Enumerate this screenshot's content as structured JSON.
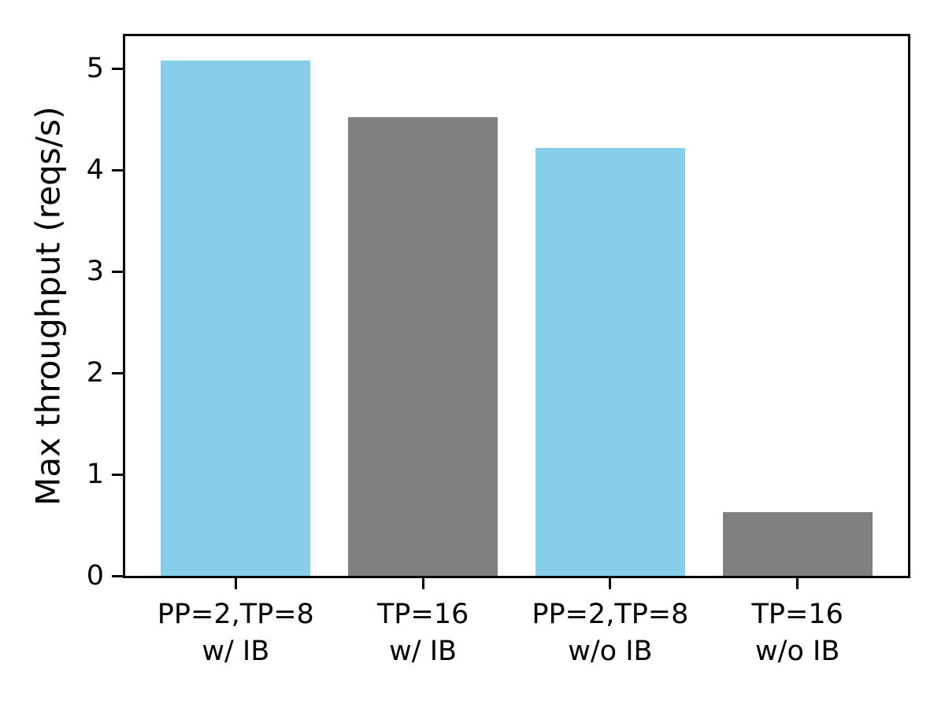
{
  "chart_data": {
    "type": "bar",
    "title": "",
    "xlabel": "",
    "ylabel": "Max throughput (reqs/s)",
    "categories": [
      {
        "line1": "PP=2,TP=8",
        "line2": "w/ IB"
      },
      {
        "line1": "TP=16",
        "line2": "w/ IB"
      },
      {
        "line1": "PP=2,TP=8",
        "line2": "w/o IB"
      },
      {
        "line1": "TP=16",
        "line2": "w/o IB"
      }
    ],
    "values": [
      5.08,
      4.52,
      4.22,
      0.63
    ],
    "bar_colors": [
      "#87CEEB",
      "#808080",
      "#87CEEB",
      "#808080"
    ],
    "y_ticks": [
      0,
      1,
      2,
      3,
      4,
      5
    ],
    "ylim": [
      0,
      5.32
    ],
    "grid": false,
    "legend_position": "none",
    "colors": {
      "skyblue_bar": "#87CEEB",
      "gray_bar": "#808080",
      "axis": "#000000",
      "background": "#ffffff"
    }
  }
}
